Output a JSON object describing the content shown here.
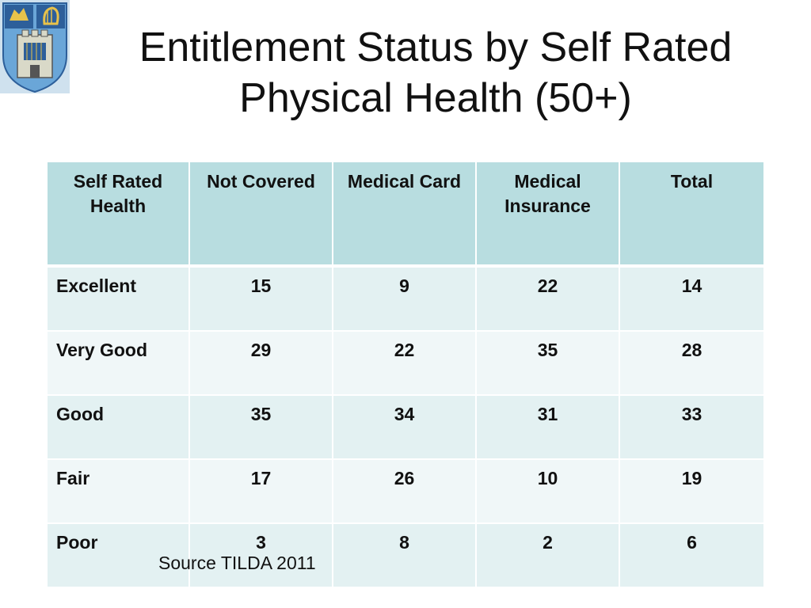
{
  "slide": {
    "title": "Entitlement Status by Self Rated Physical Health (50+)",
    "logo_icon": "university-crest-icon",
    "source": "Source TILDA 2011"
  },
  "table": {
    "headers": [
      "Self  Rated Health",
      "Not Covered",
      "Medical Card",
      "Medical Insurance",
      "Total"
    ],
    "rows": [
      {
        "label": "Excellent",
        "values": [
          "15",
          "9",
          "22",
          "14"
        ]
      },
      {
        "label": "Very Good",
        "values": [
          "29",
          "22",
          "35",
          "28"
        ]
      },
      {
        "label": "Good",
        "values": [
          "35",
          "34",
          "31",
          "33"
        ]
      },
      {
        "label": "Fair",
        "values": [
          "17",
          "26",
          "10",
          "19"
        ]
      },
      {
        "label": "Poor",
        "values": [
          "3",
          "8",
          "2",
          "6"
        ]
      }
    ]
  },
  "colors": {
    "header_bg": "#b8dde0",
    "row_odd_bg": "#e3f1f2",
    "row_even_bg": "#f0f7f8"
  }
}
